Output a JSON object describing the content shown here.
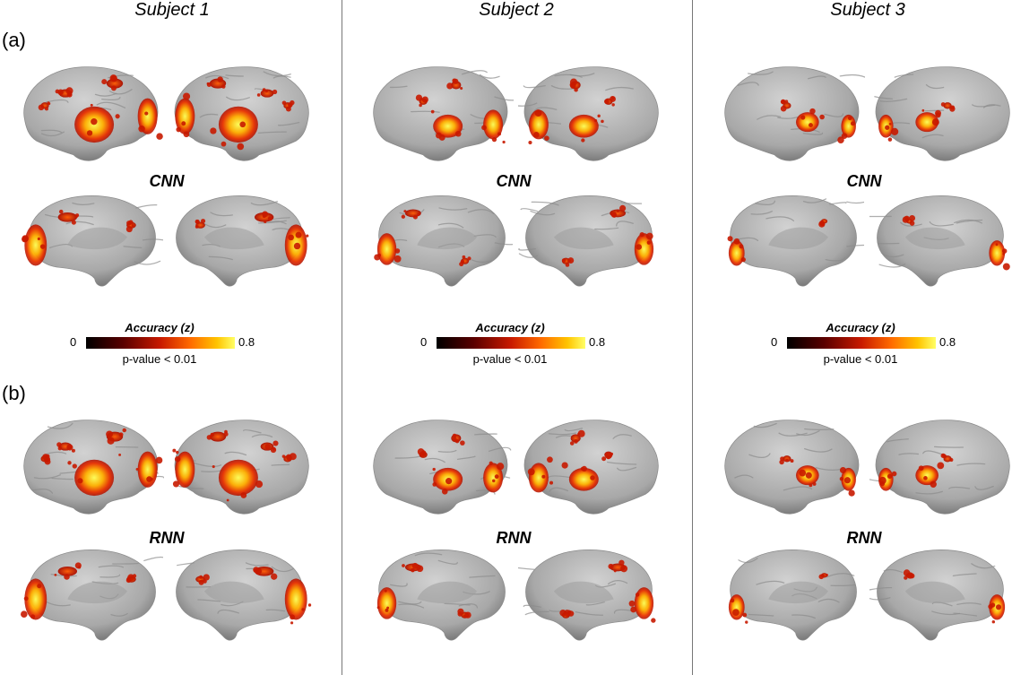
{
  "columns": [
    "Subject 1",
    "Subject 2",
    "Subject 3"
  ],
  "panels": [
    {
      "label": "(a)",
      "model": "CNN"
    },
    {
      "label": "(b)",
      "model": "RNN"
    }
  ],
  "legend": {
    "title": "Accuracy (z)",
    "min": "0",
    "max": "0.8",
    "note": "p-value < 0.01"
  },
  "colors": {
    "cortex": "#a8a8a8",
    "divider": "#777777"
  }
}
